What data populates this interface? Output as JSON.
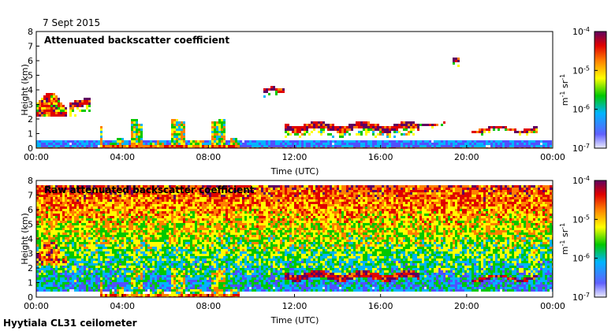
{
  "date_label": "7 Sept 2015",
  "site_label": "Hyytiala CL31 ceilometer",
  "colors": {
    "colormap": [
      "#e8e8ff",
      "#5050ff",
      "#00b4ff",
      "#00c800",
      "#ffff00",
      "#ff8000",
      "#e00000",
      "#600060"
    ]
  },
  "chart_data": [
    {
      "type": "heatmap",
      "title": "Attenuated backscatter coefficient",
      "xlabel": "Time (UTC)",
      "ylabel": "Height (km)",
      "xlim": [
        0,
        24
      ],
      "ylim": [
        0,
        8
      ],
      "x_ticks": [
        "00:00",
        "04:00",
        "08:00",
        "12:00",
        "16:00",
        "20:00",
        "00:00"
      ],
      "y_ticks": [
        "0",
        "1",
        "2",
        "3",
        "4",
        "5",
        "6",
        "7",
        "8"
      ],
      "colorbar": {
        "label": "m-1 sr-1",
        "scale": "log",
        "range": [
          1e-07,
          0.0001
        ],
        "tick_labels": [
          "10-7",
          "10-6",
          "10-5",
          "10-4"
        ]
      },
      "features": [
        {
          "kind": "boundary-layer",
          "t": [
            0,
            24
          ],
          "h_top": 0.6
        },
        {
          "kind": "aerosol-layer",
          "t": [
            0,
            1.4
          ],
          "h": [
            2.2,
            3.8
          ]
        },
        {
          "kind": "cloud",
          "t": [
            1.5,
            2.5
          ],
          "h": [
            2.6,
            3.6
          ]
        },
        {
          "kind": "precipitation-columns",
          "t": [
            3,
            9.5
          ],
          "h": [
            0,
            2
          ]
        },
        {
          "kind": "cloud",
          "t": [
            10.5,
            11.5
          ],
          "h": [
            3.6,
            4.2
          ]
        },
        {
          "kind": "cloud",
          "t": [
            11.5,
            17.8
          ],
          "h": [
            1.0,
            1.9
          ]
        },
        {
          "kind": "cloud",
          "t": [
            17.8,
            19.0
          ],
          "h": [
            1.6,
            1.8
          ]
        },
        {
          "kind": "cloud",
          "t": [
            19.4,
            19.7
          ],
          "h": [
            5.6,
            6.2
          ]
        },
        {
          "kind": "cloud",
          "t": [
            20.2,
            23.3
          ],
          "h": [
            1.1,
            1.5
          ]
        }
      ]
    },
    {
      "type": "heatmap",
      "title": "Raw attenuated backscatter coefficient",
      "xlabel": "Time (UTC)",
      "ylabel": "Height (km)",
      "xlim": [
        0,
        24
      ],
      "ylim": [
        0,
        8
      ],
      "x_ticks": [
        "00:00",
        "04:00",
        "08:00",
        "12:00",
        "16:00",
        "20:00",
        "00:00"
      ],
      "y_ticks": [
        "0",
        "1",
        "2",
        "3",
        "4",
        "5",
        "6",
        "7",
        "8"
      ],
      "colorbar": {
        "label": "m-1 sr-1",
        "scale": "log",
        "range": [
          1e-07,
          0.0001
        ],
        "tick_labels": [
          "10-7",
          "10-6",
          "10-5",
          "10-4"
        ]
      },
      "features": [
        {
          "kind": "noise-field",
          "t": [
            0,
            24
          ],
          "h": [
            0.5,
            7.7
          ]
        },
        {
          "kind": "aerosol-layer",
          "t": [
            0,
            1.4
          ],
          "h": [
            2.2,
            3.8
          ]
        },
        {
          "kind": "precipitation-columns",
          "t": [
            3,
            9.5
          ],
          "h": [
            0,
            2
          ]
        },
        {
          "kind": "cloud",
          "t": [
            11.5,
            17.8
          ],
          "h": [
            1.0,
            1.9
          ]
        },
        {
          "kind": "cloud",
          "t": [
            20.2,
            23.3
          ],
          "h": [
            1.1,
            1.5
          ]
        }
      ]
    }
  ]
}
